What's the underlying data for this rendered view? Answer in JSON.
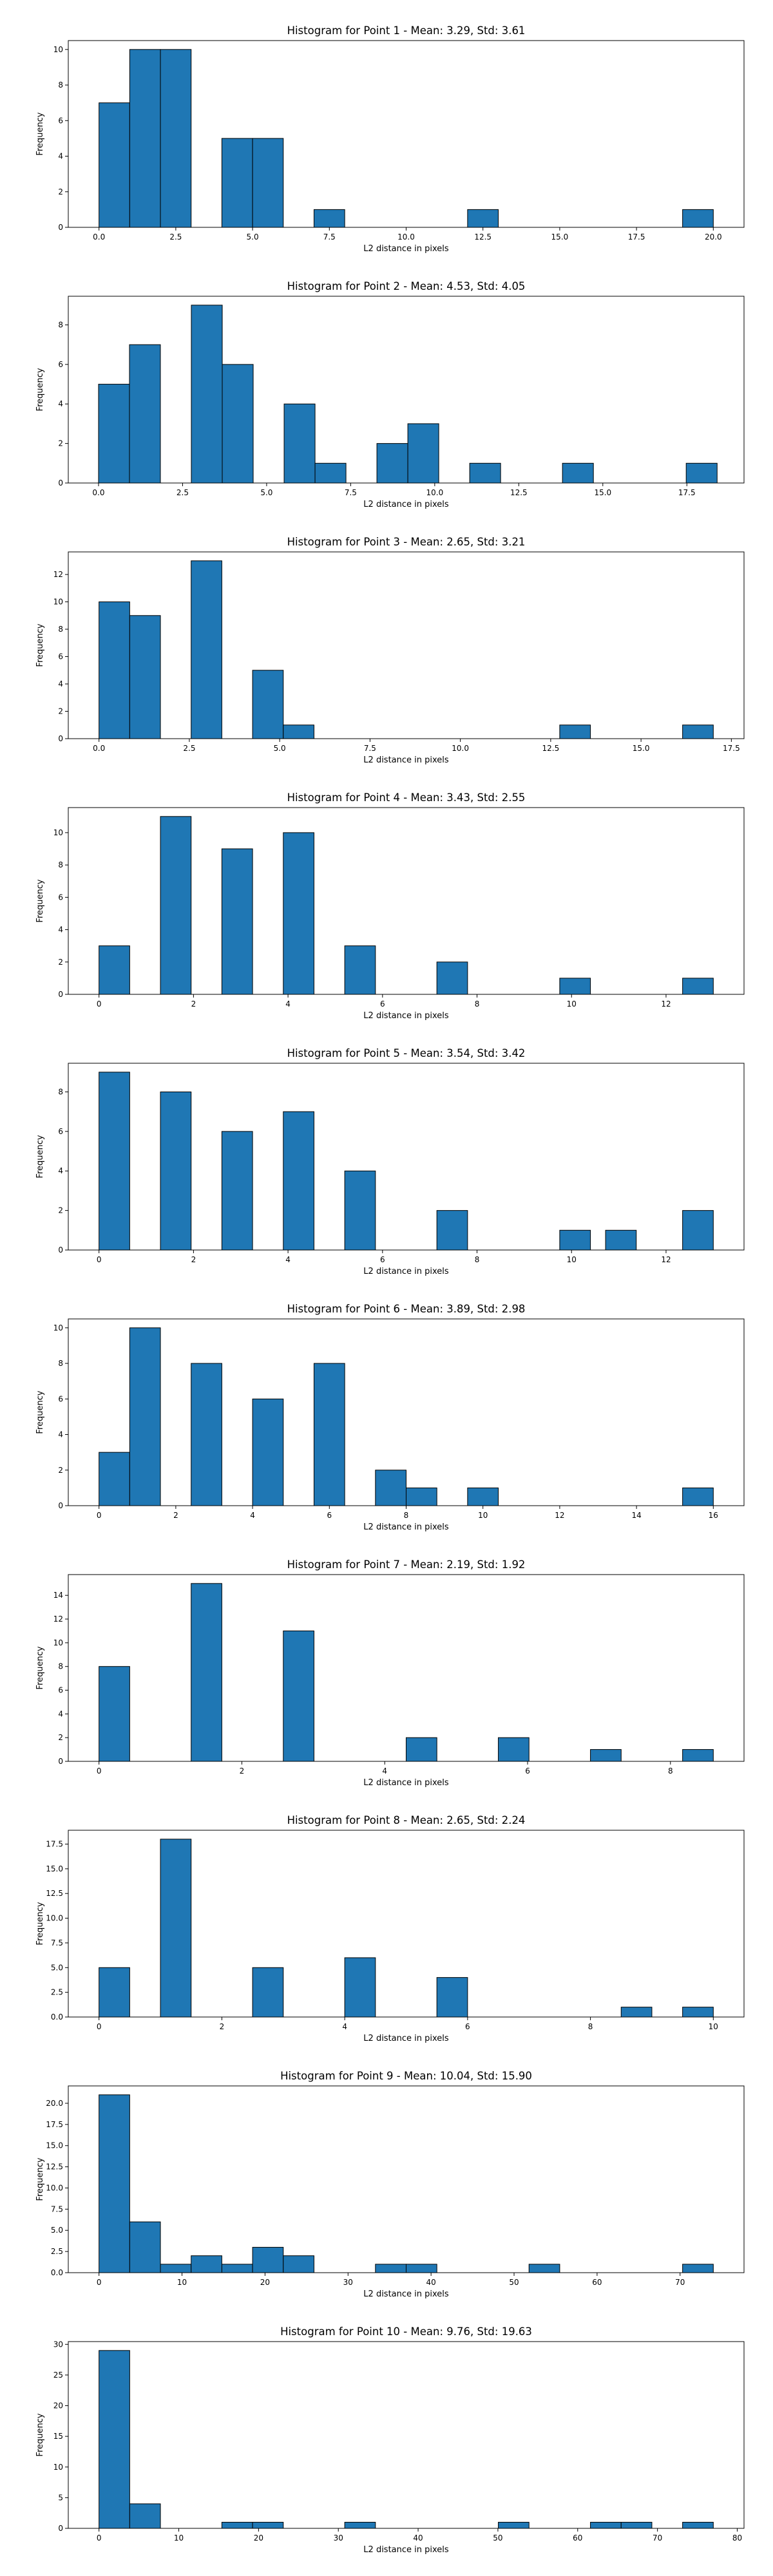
{
  "chart_data": [
    {
      "type": "bar",
      "title": "Histogram for Point 1 - Mean: 3.29, Std: 3.61",
      "xlabel": "L2 distance in pixels",
      "ylabel": "Frequency",
      "xlim": [
        -1.0,
        21.0
      ],
      "ylim": [
        0,
        10.5
      ],
      "xticks": [
        0.0,
        2.5,
        5.0,
        7.5,
        10.0,
        12.5,
        15.0,
        17.5,
        20.0
      ],
      "xtick_labels": [
        "0.0",
        "2.5",
        "5.0",
        "7.5",
        "10.0",
        "12.5",
        "15.0",
        "17.5",
        "20.0"
      ],
      "yticks": [
        0,
        2,
        4,
        6,
        8,
        10
      ],
      "ytick_labels": [
        "0",
        "2",
        "4",
        "6",
        "8",
        "10"
      ],
      "bins": [
        {
          "x0": 0.0,
          "x1": 1.0,
          "count": 7
        },
        {
          "x0": 1.0,
          "x1": 2.0,
          "count": 10
        },
        {
          "x0": 2.0,
          "x1": 3.0,
          "count": 10
        },
        {
          "x0": 4.0,
          "x1": 5.0,
          "count": 5
        },
        {
          "x0": 5.0,
          "x1": 6.0,
          "count": 5
        },
        {
          "x0": 7.0,
          "x1": 8.0,
          "count": 1
        },
        {
          "x0": 12.0,
          "x1": 13.0,
          "count": 1
        },
        {
          "x0": 19.0,
          "x1": 20.0,
          "count": 1
        }
      ]
    },
    {
      "type": "bar",
      "title": "Histogram for Point 2 - Mean: 4.53, Std: 4.05",
      "xlabel": "L2 distance in pixels",
      "ylabel": "Frequency",
      "xlim": [
        -0.9,
        19.2
      ],
      "ylim": [
        0,
        9.45
      ],
      "xticks": [
        0.0,
        2.5,
        5.0,
        7.5,
        10.0,
        12.5,
        15.0,
        17.5
      ],
      "xtick_labels": [
        "0.0",
        "2.5",
        "5.0",
        "7.5",
        "10.0",
        "12.5",
        "15.0",
        "17.5"
      ],
      "yticks": [
        0,
        2,
        4,
        6,
        8
      ],
      "ytick_labels": [
        "0",
        "2",
        "4",
        "6",
        "8"
      ],
      "bins": [
        {
          "x0": 0.0,
          "x1": 0.92,
          "count": 5
        },
        {
          "x0": 0.92,
          "x1": 1.84,
          "count": 7
        },
        {
          "x0": 2.76,
          "x1": 3.68,
          "count": 9
        },
        {
          "x0": 3.68,
          "x1": 4.6,
          "count": 6
        },
        {
          "x0": 5.52,
          "x1": 6.44,
          "count": 4
        },
        {
          "x0": 6.44,
          "x1": 7.36,
          "count": 1
        },
        {
          "x0": 8.28,
          "x1": 9.2,
          "count": 2
        },
        {
          "x0": 9.2,
          "x1": 10.12,
          "count": 3
        },
        {
          "x0": 11.04,
          "x1": 11.96,
          "count": 1
        },
        {
          "x0": 13.8,
          "x1": 14.72,
          "count": 1
        },
        {
          "x0": 17.48,
          "x1": 18.4,
          "count": 1
        }
      ]
    },
    {
      "type": "bar",
      "title": "Histogram for Point 3 - Mean: 2.65, Std: 3.21",
      "xlabel": "L2 distance in pixels",
      "ylabel": "Frequency",
      "xlim": [
        -0.85,
        17.85
      ],
      "ylim": [
        0,
        13.65
      ],
      "xticks": [
        0.0,
        2.5,
        5.0,
        7.5,
        10.0,
        12.5,
        15.0,
        17.5
      ],
      "xtick_labels": [
        "0.0",
        "2.5",
        "5.0",
        "7.5",
        "10.0",
        "12.5",
        "15.0",
        "17.5"
      ],
      "yticks": [
        0,
        2,
        4,
        6,
        8,
        10,
        12
      ],
      "ytick_labels": [
        "0",
        "2",
        "4",
        "6",
        "8",
        "10",
        "12"
      ],
      "bins": [
        {
          "x0": 0.0,
          "x1": 0.85,
          "count": 10
        },
        {
          "x0": 0.85,
          "x1": 1.7,
          "count": 9
        },
        {
          "x0": 2.55,
          "x1": 3.4,
          "count": 13
        },
        {
          "x0": 4.25,
          "x1": 5.1,
          "count": 5
        },
        {
          "x0": 5.1,
          "x1": 5.95,
          "count": 1
        },
        {
          "x0": 12.75,
          "x1": 13.6,
          "count": 1
        },
        {
          "x0": 16.15,
          "x1": 17.0,
          "count": 1
        }
      ]
    },
    {
      "type": "bar",
      "title": "Histogram for Point 4 - Mean: 3.43, Std: 2.55",
      "xlabel": "L2 distance in pixels",
      "ylabel": "Frequency",
      "xlim": [
        -0.65,
        13.65
      ],
      "ylim": [
        0,
        11.55
      ],
      "xticks": [
        0,
        2,
        4,
        6,
        8,
        10,
        12
      ],
      "xtick_labels": [
        "0",
        "2",
        "4",
        "6",
        "8",
        "10",
        "12"
      ],
      "yticks": [
        0,
        2,
        4,
        6,
        8,
        10
      ],
      "ytick_labels": [
        "0",
        "2",
        "4",
        "6",
        "8",
        "10"
      ],
      "bins": [
        {
          "x0": 0.0,
          "x1": 0.65,
          "count": 3
        },
        {
          "x0": 1.3,
          "x1": 1.95,
          "count": 11
        },
        {
          "x0": 2.6,
          "x1": 3.25,
          "count": 9
        },
        {
          "x0": 3.9,
          "x1": 4.55,
          "count": 10
        },
        {
          "x0": 5.2,
          "x1": 5.85,
          "count": 3
        },
        {
          "x0": 7.15,
          "x1": 7.8,
          "count": 2
        },
        {
          "x0": 9.75,
          "x1": 10.4,
          "count": 1
        },
        {
          "x0": 12.35,
          "x1": 13.0,
          "count": 1
        }
      ]
    },
    {
      "type": "bar",
      "title": "Histogram for Point 5 - Mean: 3.54, Std: 3.42",
      "xlabel": "L2 distance in pixels",
      "ylabel": "Frequency",
      "xlim": [
        -0.65,
        13.65
      ],
      "ylim": [
        0,
        9.45
      ],
      "xticks": [
        0,
        2,
        4,
        6,
        8,
        10,
        12
      ],
      "xtick_labels": [
        "0",
        "2",
        "4",
        "6",
        "8",
        "10",
        "12"
      ],
      "yticks": [
        0,
        2,
        4,
        6,
        8
      ],
      "ytick_labels": [
        "0",
        "2",
        "4",
        "6",
        "8"
      ],
      "bins": [
        {
          "x0": 0.0,
          "x1": 0.65,
          "count": 9
        },
        {
          "x0": 1.3,
          "x1": 1.95,
          "count": 8
        },
        {
          "x0": 2.6,
          "x1": 3.25,
          "count": 6
        },
        {
          "x0": 3.9,
          "x1": 4.55,
          "count": 7
        },
        {
          "x0": 5.2,
          "x1": 5.85,
          "count": 4
        },
        {
          "x0": 7.15,
          "x1": 7.8,
          "count": 2
        },
        {
          "x0": 9.75,
          "x1": 10.4,
          "count": 1
        },
        {
          "x0": 10.72,
          "x1": 11.37,
          "count": 1
        },
        {
          "x0": 12.35,
          "x1": 13.0,
          "count": 2
        }
      ]
    },
    {
      "type": "bar",
      "title": "Histogram for Point 6 - Mean: 3.89, Std: 2.98",
      "xlabel": "L2 distance in pixels",
      "ylabel": "Frequency",
      "xlim": [
        -0.8,
        16.8
      ],
      "ylim": [
        0,
        10.5
      ],
      "xticks": [
        0,
        2,
        4,
        6,
        8,
        10,
        12,
        14,
        16
      ],
      "xtick_labels": [
        "0",
        "2",
        "4",
        "6",
        "8",
        "10",
        "12",
        "14",
        "16"
      ],
      "yticks": [
        0,
        2,
        4,
        6,
        8,
        10
      ],
      "ytick_labels": [
        "0",
        "2",
        "4",
        "6",
        "8",
        "10"
      ],
      "bins": [
        {
          "x0": 0.0,
          "x1": 0.8,
          "count": 3
        },
        {
          "x0": 0.8,
          "x1": 1.6,
          "count": 10
        },
        {
          "x0": 2.4,
          "x1": 3.2,
          "count": 8
        },
        {
          "x0": 4.0,
          "x1": 4.8,
          "count": 6
        },
        {
          "x0": 5.6,
          "x1": 6.4,
          "count": 8
        },
        {
          "x0": 7.2,
          "x1": 8.0,
          "count": 2
        },
        {
          "x0": 8.0,
          "x1": 8.8,
          "count": 1
        },
        {
          "x0": 9.6,
          "x1": 10.4,
          "count": 1
        },
        {
          "x0": 15.2,
          "x1": 16.0,
          "count": 1
        }
      ]
    },
    {
      "type": "bar",
      "title": "Histogram for Point 7 - Mean: 2.19, Std: 1.92",
      "xlabel": "L2 distance in pixels",
      "ylabel": "Frequency",
      "xlim": [
        -0.43,
        9.03
      ],
      "ylim": [
        0,
        15.75
      ],
      "xticks": [
        0,
        2,
        4,
        6,
        8
      ],
      "xtick_labels": [
        "0",
        "2",
        "4",
        "6",
        "8"
      ],
      "yticks": [
        0,
        2,
        4,
        6,
        8,
        10,
        12,
        14
      ],
      "ytick_labels": [
        "0",
        "2",
        "4",
        "6",
        "8",
        "10",
        "12",
        "14"
      ],
      "bins": [
        {
          "x0": 0.0,
          "x1": 0.43,
          "count": 8
        },
        {
          "x0": 1.29,
          "x1": 1.72,
          "count": 15
        },
        {
          "x0": 2.58,
          "x1": 3.01,
          "count": 11
        },
        {
          "x0": 4.3,
          "x1": 4.73,
          "count": 2
        },
        {
          "x0": 5.59,
          "x1": 6.02,
          "count": 2
        },
        {
          "x0": 6.88,
          "x1": 7.31,
          "count": 1
        },
        {
          "x0": 8.17,
          "x1": 8.6,
          "count": 1
        }
      ]
    },
    {
      "type": "bar",
      "title": "Histogram for Point 8 - Mean: 2.65, Std: 2.24",
      "xlabel": "L2 distance in pixels",
      "ylabel": "Frequency",
      "xlim": [
        -0.5,
        10.5
      ],
      "ylim": [
        0,
        18.9
      ],
      "xticks": [
        0,
        2,
        4,
        6,
        8,
        10
      ],
      "xtick_labels": [
        "0",
        "2",
        "4",
        "6",
        "8",
        "10"
      ],
      "yticks": [
        0,
        2.5,
        5.0,
        7.5,
        10.0,
        12.5,
        15.0,
        17.5
      ],
      "ytick_labels": [
        "0.0",
        "2.5",
        "5.0",
        "7.5",
        "10.0",
        "12.5",
        "15.0",
        "17.5"
      ],
      "bins": [
        {
          "x0": 0.0,
          "x1": 0.5,
          "count": 5
        },
        {
          "x0": 1.0,
          "x1": 1.5,
          "count": 18
        },
        {
          "x0": 2.5,
          "x1": 3.0,
          "count": 5
        },
        {
          "x0": 4.0,
          "x1": 4.5,
          "count": 6
        },
        {
          "x0": 5.5,
          "x1": 6.0,
          "count": 4
        },
        {
          "x0": 8.5,
          "x1": 9.0,
          "count": 1
        },
        {
          "x0": 9.5,
          "x1": 10.0,
          "count": 1
        }
      ]
    },
    {
      "type": "bar",
      "title": "Histogram for Point 9 - Mean: 10.04, Std: 15.90",
      "xlabel": "L2 distance in pixels",
      "ylabel": "Frequency",
      "xlim": [
        -3.7,
        77.7
      ],
      "ylim": [
        0,
        22.05
      ],
      "xticks": [
        0,
        10,
        20,
        30,
        40,
        50,
        60,
        70
      ],
      "xtick_labels": [
        "0",
        "10",
        "20",
        "30",
        "40",
        "50",
        "60",
        "70"
      ],
      "yticks": [
        0,
        2.5,
        5.0,
        7.5,
        10.0,
        12.5,
        15.0,
        17.5,
        20.0
      ],
      "ytick_labels": [
        "0.0",
        "2.5",
        "5.0",
        "7.5",
        "10.0",
        "12.5",
        "15.0",
        "17.5",
        "20.0"
      ],
      "bins": [
        {
          "x0": 0.0,
          "x1": 3.7,
          "count": 21
        },
        {
          "x0": 3.7,
          "x1": 7.4,
          "count": 6
        },
        {
          "x0": 7.4,
          "x1": 11.1,
          "count": 1
        },
        {
          "x0": 11.1,
          "x1": 14.8,
          "count": 2
        },
        {
          "x0": 14.8,
          "x1": 18.5,
          "count": 1
        },
        {
          "x0": 18.5,
          "x1": 22.2,
          "count": 3
        },
        {
          "x0": 22.2,
          "x1": 25.9,
          "count": 2
        },
        {
          "x0": 33.3,
          "x1": 37.0,
          "count": 1
        },
        {
          "x0": 37.0,
          "x1": 40.7,
          "count": 1
        },
        {
          "x0": 51.8,
          "x1": 55.5,
          "count": 1
        },
        {
          "x0": 70.3,
          "x1": 74.0,
          "count": 1
        }
      ]
    },
    {
      "type": "bar",
      "title": "Histogram for Point 10 - Mean: 9.76, Std: 19.63",
      "xlabel": "L2 distance in pixels",
      "ylabel": "Frequency",
      "xlim": [
        -3.85,
        80.85
      ],
      "ylim": [
        0,
        30.45
      ],
      "xticks": [
        0,
        10,
        20,
        30,
        40,
        50,
        60,
        70,
        80
      ],
      "xtick_labels": [
        "0",
        "10",
        "20",
        "30",
        "40",
        "50",
        "60",
        "70",
        "80"
      ],
      "yticks": [
        0,
        5,
        10,
        15,
        20,
        25,
        30
      ],
      "ytick_labels": [
        "0",
        "5",
        "10",
        "15",
        "20",
        "25",
        "30"
      ],
      "bins": [
        {
          "x0": 0.0,
          "x1": 3.85,
          "count": 29
        },
        {
          "x0": 3.85,
          "x1": 7.7,
          "count": 4
        },
        {
          "x0": 15.4,
          "x1": 19.25,
          "count": 1
        },
        {
          "x0": 19.25,
          "x1": 23.1,
          "count": 1
        },
        {
          "x0": 30.8,
          "x1": 34.65,
          "count": 1
        },
        {
          "x0": 50.05,
          "x1": 53.9,
          "count": 1
        },
        {
          "x0": 61.6,
          "x1": 65.45,
          "count": 1
        },
        {
          "x0": 65.45,
          "x1": 69.3,
          "count": 1
        },
        {
          "x0": 73.15,
          "x1": 77.0,
          "count": 1
        }
      ]
    }
  ]
}
